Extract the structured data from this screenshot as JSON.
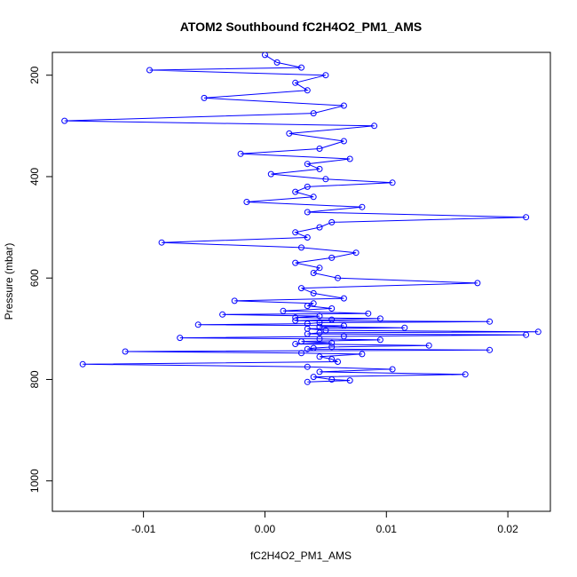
{
  "chart_data": {
    "type": "scatter",
    "title": "ATOM2 Southbound fC2H4O2_PM1_AMS",
    "xlabel": "fC2H4O2_PM1_AMS",
    "ylabel": "Pressure (mbar)",
    "xlim": [
      -0.0175,
      0.0235
    ],
    "ylim": [
      1060,
      155
    ],
    "y_reversed": true,
    "x_ticks": [
      {
        "value": -0.01,
        "label": "-0.01"
      },
      {
        "value": 0.0,
        "label": "0.00"
      },
      {
        "value": 0.01,
        "label": "0.01"
      },
      {
        "value": 0.02,
        "label": "0.02"
      }
    ],
    "y_ticks": [
      {
        "value": 200,
        "label": "200"
      },
      {
        "value": 400,
        "label": "400"
      },
      {
        "value": 600,
        "label": "600"
      },
      {
        "value": 800,
        "label": "800"
      },
      {
        "value": 1000,
        "label": "1000"
      }
    ],
    "series": [
      {
        "color": "#0000ff",
        "marker": "open-circle",
        "connected": true,
        "x": [
          0.0,
          0.001,
          0.003,
          -0.0095,
          0.005,
          0.0025,
          0.0035,
          -0.005,
          0.0065,
          0.004,
          -0.0165,
          0.009,
          0.002,
          0.0065,
          0.0045,
          -0.002,
          0.007,
          0.0035,
          0.0045,
          0.0005,
          0.005,
          0.0105,
          0.0035,
          0.0025,
          0.004,
          -0.0015,
          0.008,
          0.0035,
          0.0215,
          0.0055,
          0.0045,
          0.0025,
          0.0035,
          -0.0085,
          0.003,
          0.0075,
          0.0055,
          0.0025,
          0.0045,
          0.004,
          0.006,
          0.0175,
          0.003,
          0.004,
          0.0065,
          -0.0025,
          0.004,
          0.0035,
          0.0055,
          0.0015,
          0.0085,
          -0.0035,
          0.0045,
          0.0025,
          0.0095,
          0.0055,
          0.0025,
          0.0185,
          0.0045,
          0.0035,
          -0.0055,
          0.0065,
          0.0045,
          0.0115,
          0.0035,
          0.005,
          0.0225,
          0.0045,
          0.0035,
          0.0215,
          0.0065,
          -0.007,
          0.0045,
          0.0095,
          0.003,
          0.0055,
          0.0025,
          0.0135,
          0.0055,
          0.004,
          0.0035,
          0.0185,
          -0.0115,
          0.003,
          0.008,
          0.0045,
          0.0055,
          0.006,
          -0.015,
          0.0035,
          0.0105,
          0.0045,
          0.0165,
          0.004,
          0.0055,
          0.007,
          0.0035
        ],
        "y": [
          160,
          175,
          185,
          190,
          200,
          215,
          230,
          245,
          260,
          275,
          290,
          300,
          315,
          330,
          345,
          355,
          365,
          375,
          385,
          395,
          405,
          412,
          420,
          430,
          440,
          450,
          460,
          470,
          480,
          490,
          500,
          510,
          520,
          530,
          540,
          550,
          560,
          570,
          580,
          590,
          600,
          610,
          620,
          630,
          640,
          645,
          650,
          655,
          660,
          665,
          670,
          672,
          675,
          678,
          680,
          682,
          684,
          686,
          688,
          690,
          692,
          694,
          696,
          698,
          700,
          703,
          706,
          708,
          710,
          712,
          715,
          718,
          720,
          722,
          725,
          728,
          730,
          733,
          736,
          738,
          740,
          742,
          745,
          748,
          750,
          755,
          760,
          765,
          770,
          775,
          780,
          785,
          790,
          795,
          800,
          802,
          805
        ]
      }
    ],
    "grid": false
  }
}
